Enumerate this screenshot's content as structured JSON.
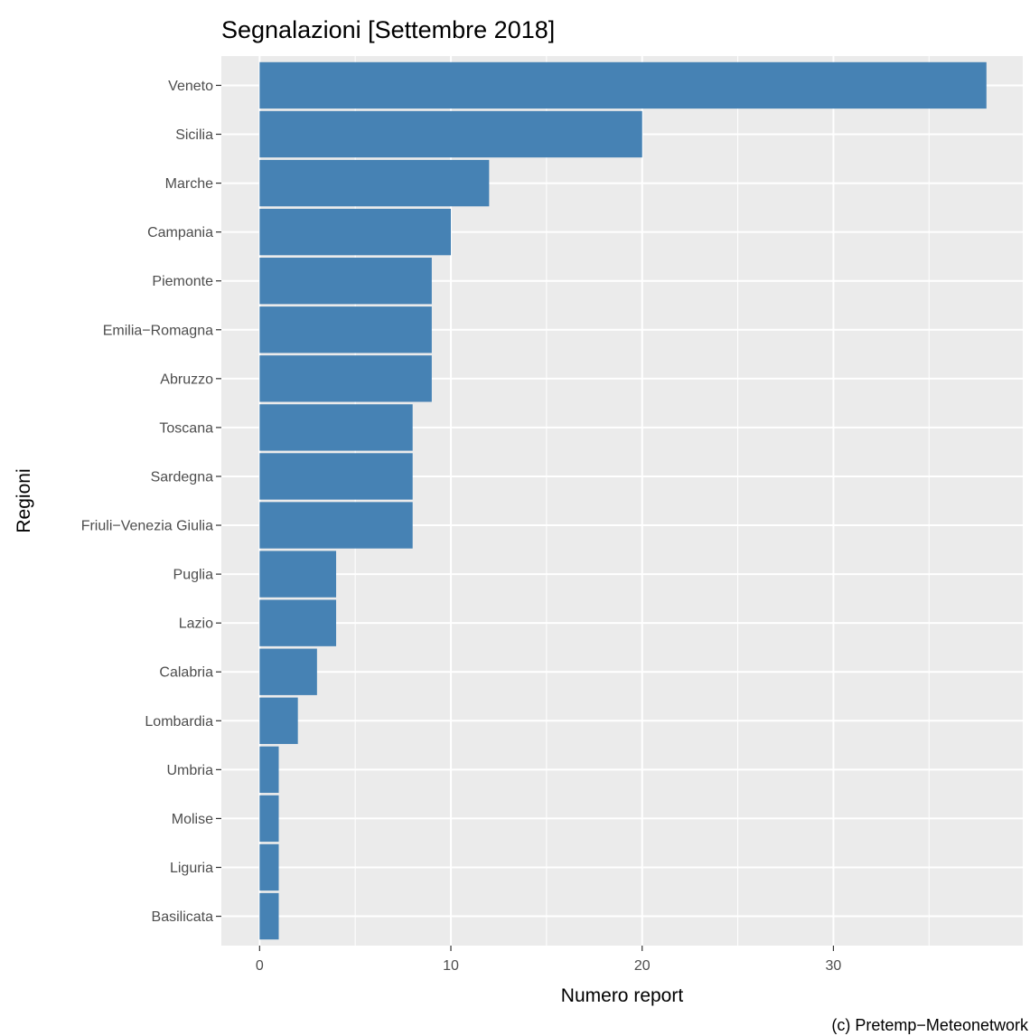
{
  "chart_data": {
    "type": "bar",
    "orientation": "horizontal",
    "title": "Segnalazioni [Settembre 2018]",
    "xlabel": "Numero report",
    "ylabel": "Regioni",
    "caption": "(c) Pretemp−Meteonetwork",
    "categories": [
      "Veneto",
      "Sicilia",
      "Marche",
      "Campania",
      "Piemonte",
      "Emilia−Romagna",
      "Abruzzo",
      "Toscana",
      "Sardegna",
      "Friuli−Venezia Giulia",
      "Puglia",
      "Lazio",
      "Calabria",
      "Lombardia",
      "Umbria",
      "Molise",
      "Liguria",
      "Basilicata"
    ],
    "values": [
      38,
      20,
      12,
      10,
      9,
      9,
      9,
      8,
      8,
      8,
      4,
      4,
      3,
      2,
      1,
      1,
      1,
      1
    ],
    "xlim": [
      -2,
      39.9
    ],
    "xticks": [
      0,
      10,
      20,
      30
    ],
    "xtick_labels": [
      "0",
      "10",
      "20",
      "30"
    ],
    "grid": true,
    "legend": "none",
    "colors": {
      "bar": "#4682b4",
      "panel_background": "#ebebeb",
      "grid_line": "#ffffff",
      "tick_label": "#4d4d4d",
      "tick_mark": "#333333"
    }
  }
}
